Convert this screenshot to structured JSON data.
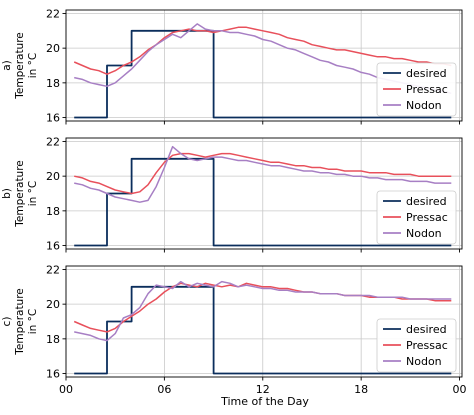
{
  "figure": {
    "xlabel": "Time of the Day",
    "x_tick_labels": [
      "00",
      "06",
      "12",
      "18",
      "00"
    ]
  },
  "legend_entries": [
    {
      "name": "desired",
      "color": "#0b2e5c"
    },
    {
      "name": "Pressac",
      "color": "#e8505b"
    },
    {
      "name": "Nodon",
      "color": "#a77fc4"
    }
  ],
  "chart_data": [
    {
      "type": "line",
      "panel_label": "a)",
      "ylabel": "Temperature\nin °C",
      "xlim": [
        0,
        48.3
      ],
      "ylim": [
        15.8,
        22.2
      ],
      "y_ticks": [
        16,
        18,
        20,
        22
      ],
      "x_ticks": [
        0,
        6,
        12,
        18,
        24
      ],
      "grid": true,
      "legend_position": "lower-right",
      "series": [
        {
          "name": "desired",
          "color": "#0b2e5c",
          "x": [
            1,
            5,
            5,
            8,
            8,
            18,
            18,
            47
          ],
          "y": [
            16,
            16,
            19,
            19,
            21,
            21,
            16,
            16
          ]
        },
        {
          "name": "Pressac",
          "color": "#e8505b",
          "x": [
            1,
            2,
            3,
            4,
            5,
            6,
            7,
            8,
            9,
            10,
            11,
            12,
            13,
            14,
            15,
            16,
            17,
            18,
            19,
            20,
            21,
            22,
            23,
            24,
            25,
            26,
            27,
            28,
            29,
            30,
            31,
            32,
            33,
            34,
            35,
            36,
            37,
            38,
            39,
            40,
            41,
            42,
            43,
            44,
            45,
            46,
            47
          ],
          "y": [
            19.2,
            19.0,
            18.8,
            18.7,
            18.5,
            18.7,
            19.0,
            19.2,
            19.5,
            19.9,
            20.2,
            20.6,
            20.9,
            21.0,
            21.1,
            21.0,
            21.0,
            20.9,
            21.0,
            21.1,
            21.2,
            21.2,
            21.1,
            21.0,
            20.9,
            20.8,
            20.6,
            20.5,
            20.4,
            20.2,
            20.1,
            20.0,
            19.9,
            19.9,
            19.8,
            19.7,
            19.6,
            19.5,
            19.5,
            19.4,
            19.4,
            19.3,
            19.2,
            19.2,
            19.1,
            19.1,
            19.0
          ]
        },
        {
          "name": "Nodon",
          "color": "#a77fc4",
          "x": [
            1,
            2,
            3,
            4,
            5,
            6,
            7,
            8,
            9,
            10,
            11,
            12,
            13,
            14,
            15,
            16,
            17,
            18,
            19,
            20,
            21,
            22,
            23,
            24,
            25,
            26,
            27,
            28,
            29,
            30,
            31,
            32,
            33,
            34,
            35,
            36,
            37,
            38,
            39,
            40,
            41,
            42,
            43,
            44,
            45,
            46,
            47
          ],
          "y": [
            18.3,
            18.2,
            18.0,
            17.9,
            17.8,
            18.0,
            18.4,
            18.8,
            19.3,
            19.8,
            20.2,
            20.5,
            20.8,
            20.6,
            21.0,
            21.4,
            21.1,
            21.0,
            21.0,
            20.9,
            20.9,
            20.8,
            20.7,
            20.5,
            20.4,
            20.2,
            20.0,
            19.9,
            19.7,
            19.5,
            19.3,
            19.2,
            19.0,
            18.9,
            18.8,
            18.6,
            18.5,
            18.3,
            18.2,
            18.1,
            18.0,
            17.9,
            17.8,
            17.7,
            17.6,
            17.5,
            17.4
          ]
        }
      ]
    },
    {
      "type": "line",
      "panel_label": "b)",
      "ylabel": "Temperature\nin °C",
      "xlim": [
        0,
        48.3
      ],
      "ylim": [
        15.8,
        22.2
      ],
      "y_ticks": [
        16,
        18,
        20,
        22
      ],
      "x_ticks": [
        0,
        6,
        12,
        18,
        24
      ],
      "grid": true,
      "legend_position": "lower-right",
      "series": [
        {
          "name": "desired",
          "color": "#0b2e5c",
          "x": [
            1,
            5,
            5,
            8,
            8,
            18,
            18,
            47
          ],
          "y": [
            16,
            16,
            19,
            19,
            21,
            21,
            16,
            16
          ]
        },
        {
          "name": "Pressac",
          "color": "#e8505b",
          "x": [
            1,
            2,
            3,
            4,
            5,
            6,
            7,
            8,
            9,
            10,
            11,
            12,
            13,
            14,
            15,
            16,
            17,
            18,
            19,
            20,
            21,
            22,
            23,
            24,
            25,
            26,
            27,
            28,
            29,
            30,
            31,
            32,
            33,
            34,
            35,
            36,
            37,
            38,
            39,
            40,
            41,
            42,
            43,
            44,
            45,
            46,
            47
          ],
          "y": [
            20.0,
            19.9,
            19.7,
            19.6,
            19.4,
            19.2,
            19.1,
            19.0,
            19.1,
            19.5,
            20.2,
            20.8,
            21.2,
            21.3,
            21.3,
            21.2,
            21.1,
            21.2,
            21.3,
            21.3,
            21.2,
            21.1,
            21.0,
            20.9,
            20.8,
            20.8,
            20.7,
            20.6,
            20.6,
            20.5,
            20.5,
            20.4,
            20.4,
            20.3,
            20.3,
            20.3,
            20.2,
            20.2,
            20.2,
            20.1,
            20.1,
            20.1,
            20.0,
            20.0,
            20.0,
            20.0,
            20.0
          ]
        },
        {
          "name": "Nodon",
          "color": "#a77fc4",
          "x": [
            1,
            2,
            3,
            4,
            5,
            6,
            7,
            8,
            9,
            10,
            11,
            12,
            13,
            14,
            15,
            16,
            17,
            18,
            19,
            20,
            21,
            22,
            23,
            24,
            25,
            26,
            27,
            28,
            29,
            30,
            31,
            32,
            33,
            34,
            35,
            36,
            37,
            38,
            39,
            40,
            41,
            42,
            43,
            44,
            45,
            46,
            47
          ],
          "y": [
            19.6,
            19.5,
            19.3,
            19.2,
            19.0,
            18.8,
            18.7,
            18.6,
            18.5,
            18.6,
            19.4,
            20.5,
            21.7,
            21.3,
            21.0,
            20.9,
            21.0,
            21.1,
            21.1,
            21.0,
            20.9,
            20.9,
            20.8,
            20.7,
            20.6,
            20.6,
            20.5,
            20.4,
            20.3,
            20.3,
            20.2,
            20.2,
            20.1,
            20.1,
            20.0,
            20.0,
            19.9,
            19.9,
            19.8,
            19.8,
            19.8,
            19.7,
            19.7,
            19.7,
            19.6,
            19.6,
            19.6
          ]
        }
      ]
    },
    {
      "type": "line",
      "panel_label": "c)",
      "ylabel": "Temperature\nin °C",
      "xlim": [
        0,
        48.3
      ],
      "ylim": [
        15.8,
        22.2
      ],
      "y_ticks": [
        16,
        18,
        20,
        22
      ],
      "x_ticks": [
        0,
        6,
        12,
        18,
        24
      ],
      "grid": true,
      "legend_position": "lower-right",
      "series": [
        {
          "name": "desired",
          "color": "#0b2e5c",
          "x": [
            1,
            5,
            5,
            8,
            8,
            18,
            18,
            47
          ],
          "y": [
            16,
            16,
            19,
            19,
            21,
            21,
            16,
            16
          ]
        },
        {
          "name": "Pressac",
          "color": "#e8505b",
          "x": [
            1,
            2,
            3,
            4,
            5,
            6,
            7,
            8,
            9,
            10,
            11,
            12,
            13,
            14,
            15,
            16,
            17,
            18,
            19,
            20,
            21,
            22,
            23,
            24,
            25,
            26,
            27,
            28,
            29,
            30,
            31,
            32,
            33,
            34,
            35,
            36,
            37,
            38,
            39,
            40,
            41,
            42,
            43,
            44,
            45,
            46,
            47
          ],
          "y": [
            19.0,
            18.8,
            18.6,
            18.5,
            18.4,
            18.6,
            19.0,
            19.3,
            19.6,
            20.0,
            20.3,
            20.7,
            21.0,
            21.2,
            21.1,
            21.0,
            21.2,
            21.1,
            21.0,
            21.1,
            21.0,
            21.2,
            21.1,
            21.0,
            21.0,
            20.9,
            20.9,
            20.8,
            20.7,
            20.7,
            20.6,
            20.6,
            20.6,
            20.5,
            20.5,
            20.5,
            20.4,
            20.4,
            20.4,
            20.4,
            20.3,
            20.3,
            20.3,
            20.3,
            20.2,
            20.2,
            20.2
          ]
        },
        {
          "name": "Nodon",
          "color": "#a77fc4",
          "x": [
            1,
            2,
            3,
            4,
            5,
            6,
            7,
            8,
            9,
            10,
            11,
            12,
            13,
            14,
            15,
            16,
            17,
            18,
            19,
            20,
            21,
            22,
            23,
            24,
            25,
            26,
            27,
            28,
            29,
            30,
            31,
            32,
            33,
            34,
            35,
            36,
            37,
            38,
            39,
            40,
            41,
            42,
            43,
            44,
            45,
            46,
            47
          ],
          "y": [
            18.4,
            18.3,
            18.2,
            18.0,
            17.9,
            18.3,
            19.2,
            19.4,
            19.8,
            20.6,
            21.1,
            21.0,
            20.9,
            21.3,
            21.0,
            21.2,
            21.1,
            21.0,
            21.3,
            21.2,
            21.0,
            21.1,
            21.0,
            20.9,
            20.9,
            20.8,
            20.8,
            20.7,
            20.7,
            20.7,
            20.6,
            20.6,
            20.6,
            20.5,
            20.5,
            20.5,
            20.5,
            20.4,
            20.4,
            20.4,
            20.4,
            20.3,
            20.3,
            20.3,
            20.3,
            20.3,
            20.3
          ]
        }
      ]
    }
  ]
}
